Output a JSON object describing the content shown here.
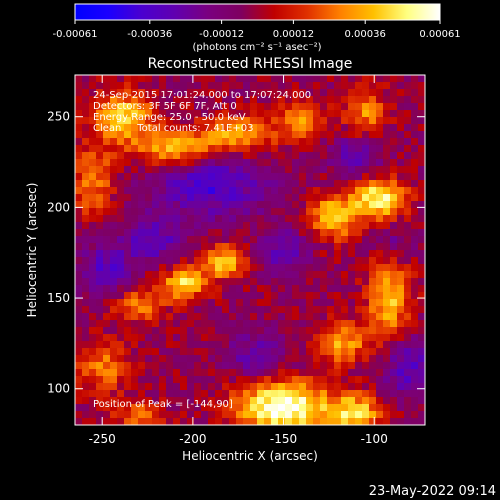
{
  "chart_data": {
    "type": "heatmap",
    "title": "Reconstructed RHESSI Image",
    "xlabel": "Heliocentric X (arcsec)",
    "ylabel": "Heliocentric Y (arcsec)",
    "xlim": [
      -265,
      -72
    ],
    "ylim": [
      80,
      273
    ],
    "x_ticks": [
      -250,
      -200,
      -150,
      -100
    ],
    "y_ticks": [
      100,
      150,
      200,
      250
    ],
    "colorbar": {
      "range": [
        -0.00061,
        0.00061
      ],
      "tick_values": [
        -0.00061,
        -0.00036,
        -0.00012,
        0.00012,
        0.00036,
        0.00061
      ],
      "tick_labels": [
        "-0.00061",
        "-0.00036",
        "-0.00012",
        "0.00012",
        "0.00036",
        "0.00061"
      ],
      "units": "(photons cm⁻² s⁻¹ asec⁻²)",
      "colors": [
        "#0000ff",
        "#1a00ff",
        "#4a00d0",
        "#6000b0",
        "#7a0080",
        "#7f0060",
        "#c00000",
        "#e03000",
        "#ff8000",
        "#ffc000",
        "#ffff80",
        "#ffffff"
      ]
    },
    "annotations": [
      "24-Sep-2015 17:01:24.000 to 17:07:24.000",
      "Detectors: 3F 5F 6F 7F, Att 0",
      "Energy Range: 25.0 - 50.0 keV",
      "Clean     Total counts: 7.41E+03"
    ],
    "peak_label": "Position of Peak = [-144,90]",
    "peak_position": [
      -144,
      90
    ],
    "components": [
      {
        "x": -150,
        "y": 90,
        "sx": 18,
        "sy": 10,
        "amp": 0.00066
      },
      {
        "x": -110,
        "y": 86,
        "sx": 10,
        "sy": 8,
        "amp": 0.00045
      },
      {
        "x": -92,
        "y": 150,
        "sx": 8,
        "sy": 18,
        "amp": 0.00042
      },
      {
        "x": -118,
        "y": 125,
        "sx": 10,
        "sy": 8,
        "amp": 0.00038
      },
      {
        "x": -205,
        "y": 158,
        "sx": 9,
        "sy": 6,
        "amp": 0.00048
      },
      {
        "x": -183,
        "y": 170,
        "sx": 9,
        "sy": 6,
        "amp": 0.00048
      },
      {
        "x": -230,
        "y": 146,
        "sx": 10,
        "sy": 6,
        "amp": 0.00034
      },
      {
        "x": -97,
        "y": 205,
        "sx": 10,
        "sy": 8,
        "amp": 0.00056
      },
      {
        "x": -122,
        "y": 195,
        "sx": 10,
        "sy": 9,
        "amp": 0.00044
      },
      {
        "x": -210,
        "y": 233,
        "sx": 14,
        "sy": 7,
        "amp": 0.00044
      },
      {
        "x": -175,
        "y": 240,
        "sx": 14,
        "sy": 7,
        "amp": 0.0004
      },
      {
        "x": -238,
        "y": 250,
        "sx": 12,
        "sy": 10,
        "amp": 0.00045
      },
      {
        "x": -255,
        "y": 215,
        "sx": 8,
        "sy": 14,
        "amp": 0.00032
      },
      {
        "x": -140,
        "y": 248,
        "sx": 10,
        "sy": 7,
        "amp": 0.00032
      },
      {
        "x": -105,
        "y": 252,
        "sx": 8,
        "sy": 10,
        "amp": 0.00032
      },
      {
        "x": -250,
        "y": 112,
        "sx": 10,
        "sy": 10,
        "amp": 0.0003
      },
      {
        "x": -230,
        "y": 85,
        "sx": 10,
        "sy": 6,
        "amp": 0.00025
      },
      {
        "x": -190,
        "y": 212,
        "sx": 22,
        "sy": 12,
        "amp": -0.00034
      },
      {
        "x": -150,
        "y": 176,
        "sx": 10,
        "sy": 9,
        "amp": -0.00026
      },
      {
        "x": -222,
        "y": 182,
        "sx": 12,
        "sy": 9,
        "amp": -0.00028
      },
      {
        "x": -248,
        "y": 165,
        "sx": 10,
        "sy": 10,
        "amp": -0.0003
      },
      {
        "x": -165,
        "y": 118,
        "sx": 12,
        "sy": 9,
        "amp": -0.00022
      },
      {
        "x": -110,
        "y": 228,
        "sx": 10,
        "sy": 9,
        "amp": -0.00026
      },
      {
        "x": -82,
        "y": 112,
        "sx": 10,
        "sy": 12,
        "amp": -0.0003
      },
      {
        "x": -90,
        "y": 180,
        "sx": 8,
        "sy": 8,
        "amp": -0.0002
      }
    ]
  },
  "footer": {
    "timestamp": "23-May-2022 09:14"
  }
}
